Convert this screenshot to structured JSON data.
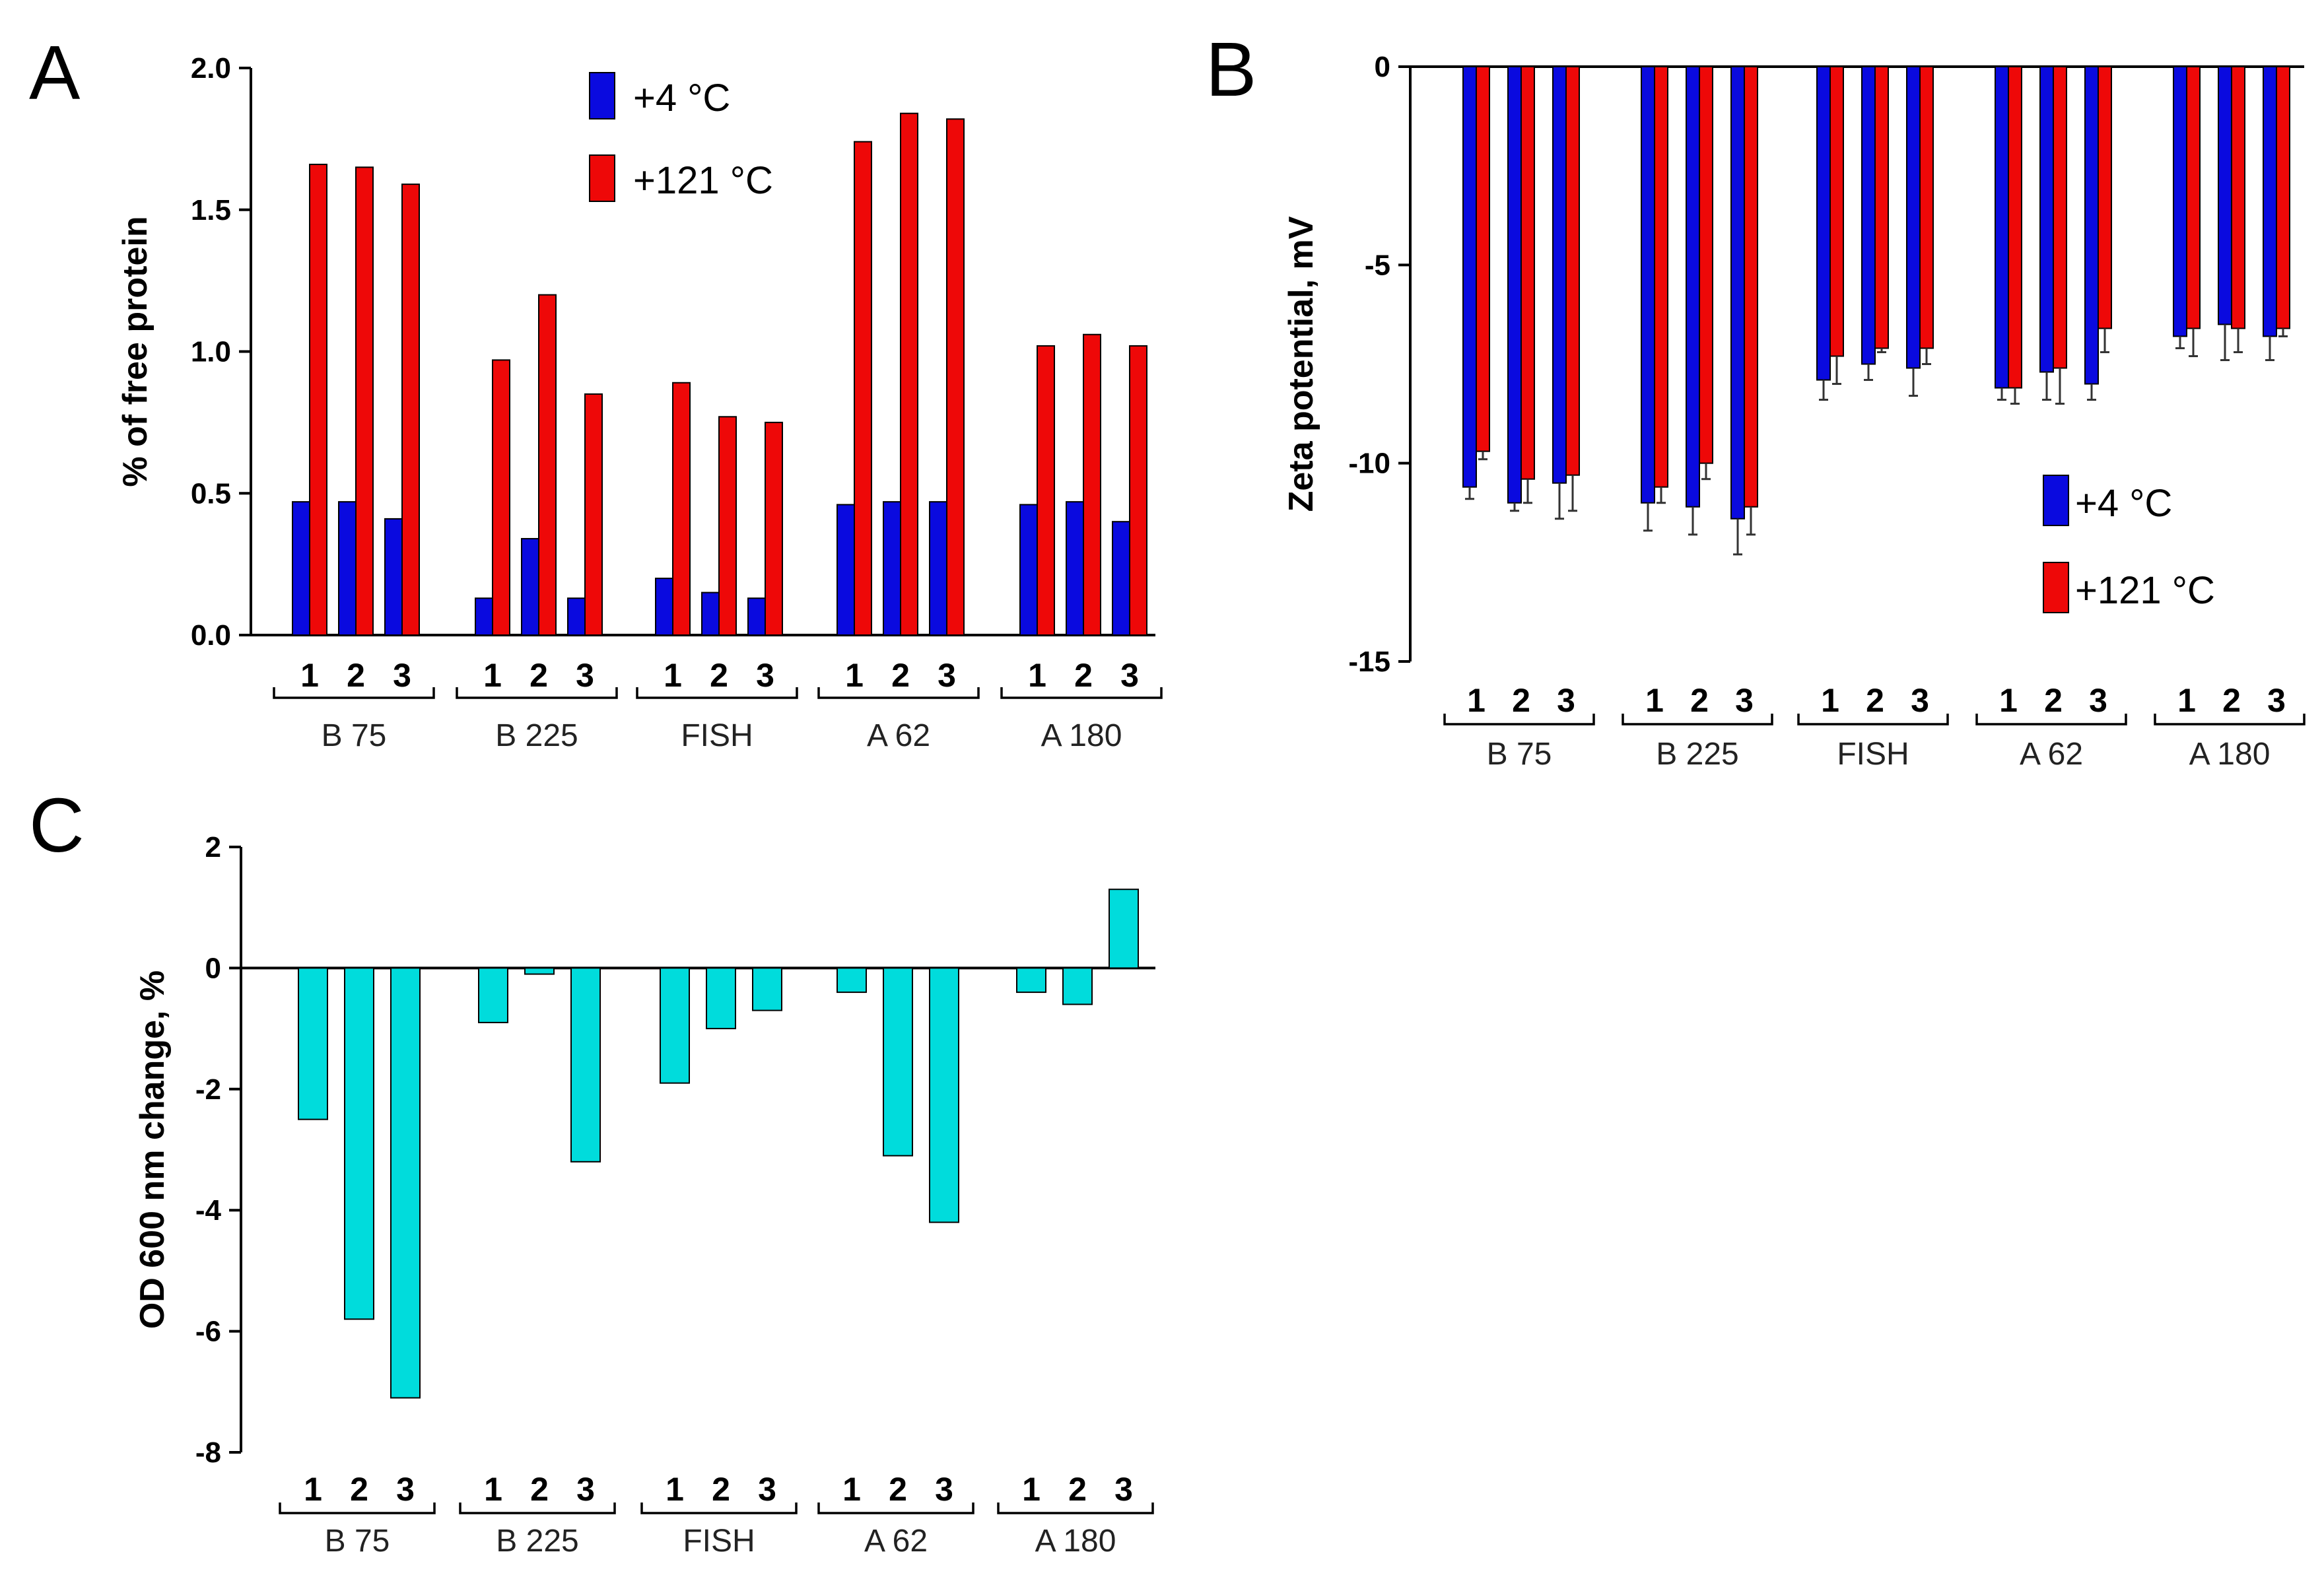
{
  "colors": {
    "cold": "#0a0adf",
    "hot": "#ee0808",
    "od": "#00dcdc"
  },
  "chart_data": [
    {
      "type": "bar",
      "panel": "A",
      "ylabel": "% of free protein",
      "ylim": [
        0,
        2.0
      ],
      "yticks": [
        "0.0",
        "0.5",
        "1.0",
        "1.5",
        "2.0"
      ],
      "groups": [
        "B 75",
        "B 225",
        "FISH",
        "A 62",
        "A 180"
      ],
      "replicates": [
        "1",
        "2",
        "3"
      ],
      "legend": {
        "position": "top-right"
      },
      "series": [
        {
          "name": "+4 °C",
          "color_key": "cold",
          "values": [
            [
              0.47,
              0.47,
              0.41
            ],
            [
              0.13,
              0.34,
              0.13
            ],
            [
              0.2,
              0.15,
              0.13
            ],
            [
              0.46,
              0.47,
              0.47
            ],
            [
              0.46,
              0.47,
              0.4
            ]
          ]
        },
        {
          "name": "+121 °C",
          "color_key": "hot",
          "values": [
            [
              1.66,
              1.65,
              1.59
            ],
            [
              0.97,
              1.2,
              0.85
            ],
            [
              0.89,
              0.77,
              0.75
            ],
            [
              1.74,
              1.84,
              1.82
            ],
            [
              1.02,
              1.06,
              1.02
            ]
          ]
        }
      ]
    },
    {
      "type": "bar",
      "panel": "B",
      "ylabel": "Zeta potential, mV",
      "ylim": [
        -15,
        0
      ],
      "yticks": [
        "-15",
        "-10",
        "-5",
        "0"
      ],
      "groups": [
        "B 75",
        "B 225",
        "FISH",
        "A 62",
        "A 180"
      ],
      "replicates": [
        "1",
        "2",
        "3"
      ],
      "legend": {
        "position": "bottom-right"
      },
      "series": [
        {
          "name": "+4 °C",
          "color_key": "cold",
          "values": [
            [
              -10.6,
              -11.0,
              -10.5
            ],
            [
              -11.0,
              -11.1,
              -11.4
            ],
            [
              -7.9,
              -7.5,
              -7.6
            ],
            [
              -8.1,
              -7.7,
              -8.0
            ],
            [
              -6.8,
              -6.5,
              -6.8
            ]
          ],
          "errors": [
            [
              0.3,
              0.2,
              0.9
            ],
            [
              0.7,
              0.7,
              0.9
            ],
            [
              0.5,
              0.4,
              0.7
            ],
            [
              0.3,
              0.7,
              0.4
            ],
            [
              0.3,
              0.9,
              0.6
            ]
          ]
        },
        {
          "name": "+121 °C",
          "color_key": "hot",
          "values": [
            [
              -9.7,
              -10.4,
              -10.3
            ],
            [
              -10.6,
              -10.0,
              -11.1
            ],
            [
              -7.3,
              -7.1,
              -7.1
            ],
            [
              -8.1,
              -7.6,
              -6.6
            ],
            [
              -6.6,
              -6.6,
              -6.6
            ]
          ],
          "errors": [
            [
              0.2,
              0.6,
              0.9
            ],
            [
              0.4,
              0.4,
              0.7
            ],
            [
              0.7,
              0.1,
              0.4
            ],
            [
              0.4,
              0.9,
              0.6
            ],
            [
              0.7,
              0.6,
              0.2
            ]
          ]
        }
      ]
    },
    {
      "type": "bar",
      "panel": "C",
      "ylabel": "OD 600  nm change, %",
      "ylim": [
        -8,
        2
      ],
      "yticks": [
        "-8",
        "-6",
        "-4",
        "-2",
        "0",
        "2"
      ],
      "groups": [
        "B 75",
        "B 225",
        "FISH",
        "A 62",
        "A 180"
      ],
      "replicates": [
        "1",
        "2",
        "3"
      ],
      "series": [
        {
          "name": "OD 600 nm change",
          "color_key": "od",
          "values": [
            [
              -2.5,
              -5.8,
              -7.1
            ],
            [
              -0.9,
              -0.1,
              -3.2
            ],
            [
              -1.9,
              -1.0,
              -0.7
            ],
            [
              -0.4,
              -3.1,
              -4.2
            ],
            [
              -0.4,
              -0.6,
              1.3
            ]
          ]
        }
      ]
    }
  ]
}
